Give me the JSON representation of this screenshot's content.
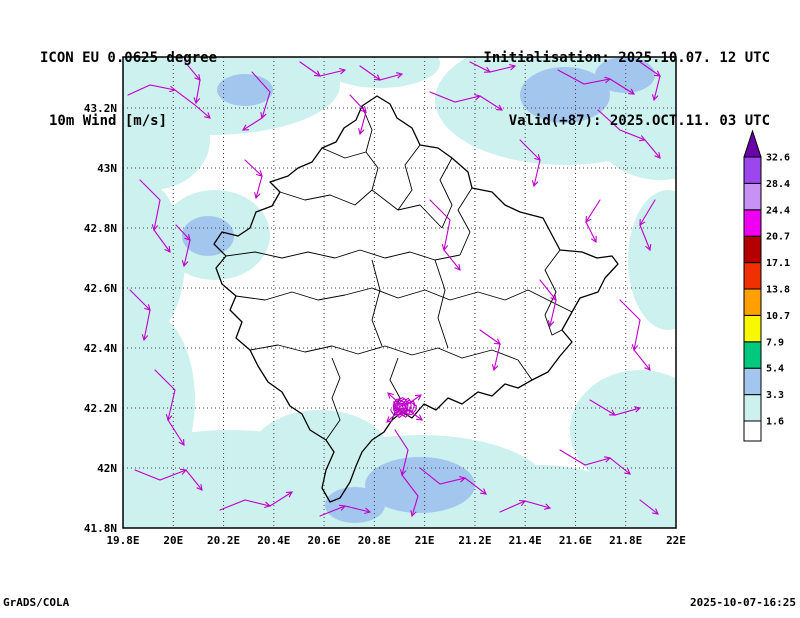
{
  "header": {
    "model": "ICON EU 0.0625 degree",
    "field": "10m Wind [m/s]",
    "init_label": "Initialisation: 2025.10.07. 12 UTC",
    "valid_label": "Valid(+87): 2025.OCT.11. 03 UTC"
  },
  "map": {
    "lat_ticks": [
      "43.2N",
      "43N",
      "42.8N",
      "42.6N",
      "42.4N",
      "42.2N",
      "42N",
      "41.8N"
    ],
    "lon_ticks": [
      "19.8E",
      "20E",
      "20.2E",
      "20.4E",
      "20.6E",
      "20.8E",
      "21E",
      "21.2E",
      "21.4E",
      "21.6E",
      "21.8E",
      "22E"
    ]
  },
  "colorbar": {
    "levels": [
      "32.6",
      "28.4",
      "24.4",
      "20.7",
      "17.1",
      "13.8",
      "10.7",
      "7.9",
      "5.4",
      "3.3",
      "1.6"
    ],
    "colors_bottom_to_top": [
      "#ffffff",
      "#cdf1ee",
      "#a3c6ee",
      "#00c87d",
      "#f8f800",
      "#ffa000",
      "#f03000",
      "#b40000",
      "#f000f0",
      "#c892f5",
      "#9c46ee"
    ],
    "arrow_color": "#6a00a8"
  },
  "colors": {
    "streamline": "#c000cc",
    "shade_low": "#cdf1ee",
    "shade_mid": "#a3c6ee"
  },
  "footer": {
    "left": "GrADS/COLA",
    "right": "2025-10-07-16:25"
  },
  "chart_data": {
    "type": "map",
    "title": "10m Wind [m/s]",
    "model": "ICON EU 0.0625 degree",
    "initialisation": "2025.10.07. 12 UTC",
    "valid": "2025.OCT.11. 03 UTC (forecast hour +87)",
    "region": "Kosovo (municipal boundaries shown)",
    "lon_range_deg_east": [
      19.8,
      22.0
    ],
    "lat_range_deg_north": [
      41.8,
      43.4
    ],
    "shade_levels_ms": [
      1.6,
      3.3,
      5.4,
      7.9,
      10.7,
      13.8,
      17.1,
      20.7,
      24.4,
      28.4,
      32.6
    ],
    "depicted": "Magenta wind streamlines with arrowheads; shaded 10m wind speed mostly in the 1.6-3.3 and 3.3-5.4 m/s classes (pale cyan / light blue patches), white elsewhere; dense streamline tangle near 20.9E 42.2N",
    "legend_position": "right vertical colorbar",
    "grid": "dotted lat/lon grid every 0.2 degrees"
  }
}
